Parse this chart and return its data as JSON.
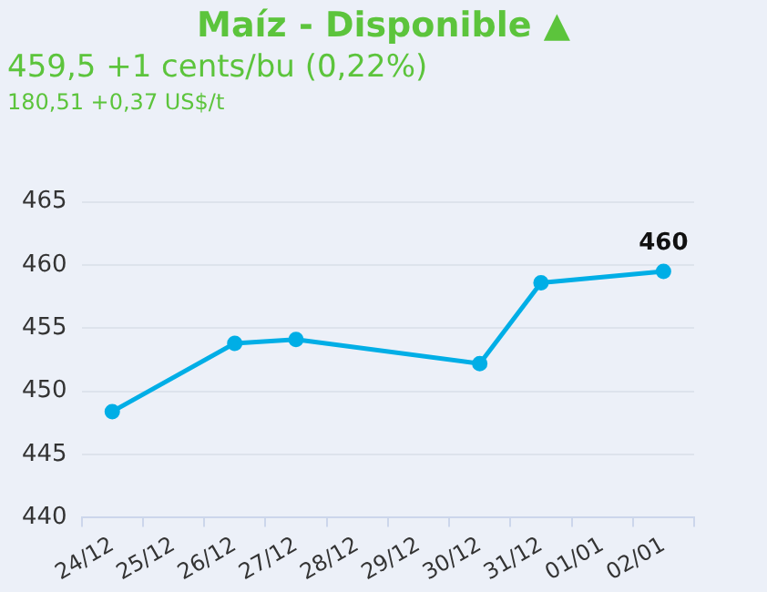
{
  "chart_data": {
    "type": "line",
    "title": "Maíz - Disponible ▲",
    "subtitle": "459,5 +1 cents/bu (0,22%)",
    "annotations": [
      "180,51 +0,37 US$/t"
    ],
    "categories": [
      "24/12",
      "25/12",
      "26/12",
      "27/12",
      "28/12",
      "29/12",
      "30/12",
      "31/12",
      "01/01",
      "02/01"
    ],
    "series": [
      {
        "color": "#00aee6",
        "values": [
          448.4,
          null,
          453.8,
          454.1,
          null,
          null,
          452.2,
          458.6,
          null,
          459.5
        ],
        "value_labels": [
          null,
          null,
          null,
          null,
          null,
          null,
          null,
          null,
          null,
          "460"
        ]
      }
    ],
    "ylim": [
      440,
      465
    ],
    "yticks": [
      440,
      445,
      450,
      455,
      460,
      465
    ],
    "grid": "y",
    "legend": false,
    "marker": "circle",
    "line_style": "solid"
  }
}
